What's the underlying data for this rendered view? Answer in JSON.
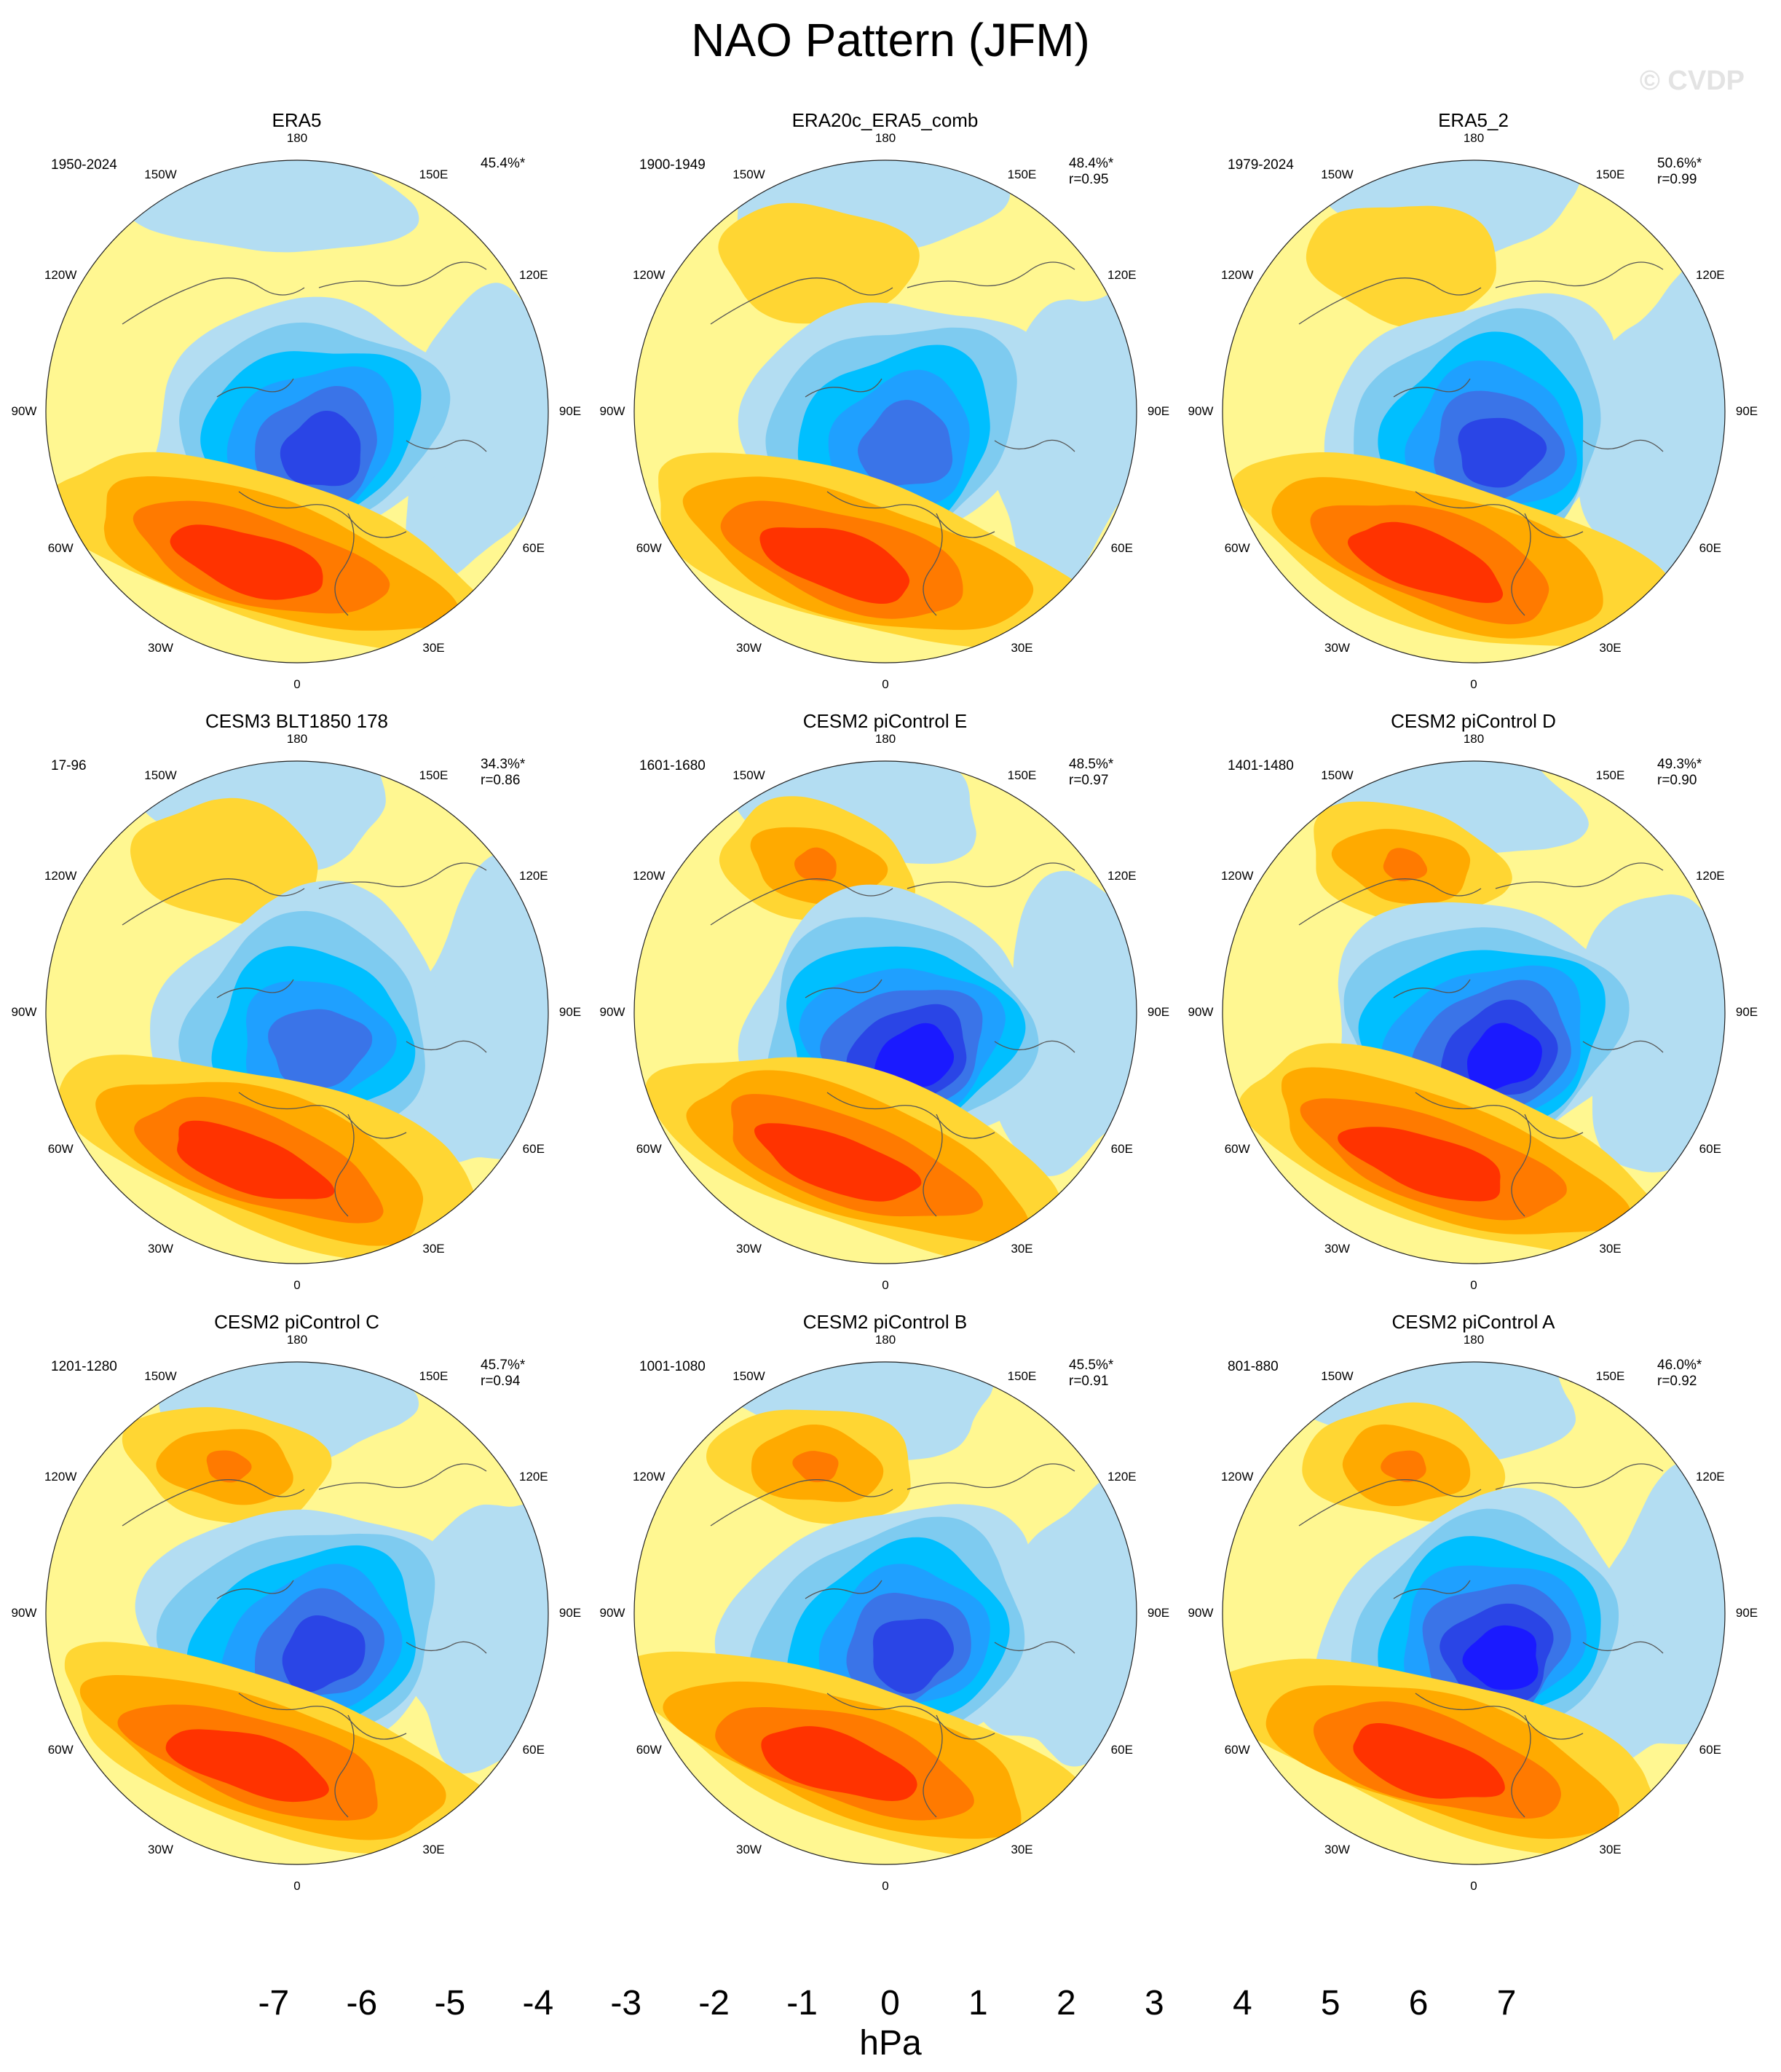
{
  "title": "NAO Pattern (JFM)",
  "watermark": "© CVDP",
  "longitude_labels": [
    "180",
    "150E",
    "120E",
    "90E",
    "60E",
    "30E",
    "0",
    "30W",
    "60W",
    "90W",
    "120W",
    "150W"
  ],
  "colors": {
    "blue_deep": "#1a1aff",
    "blue_mid": "#3a66e6",
    "blue_light": "#1fa0ff",
    "cyan": "#00bfff",
    "sky": "#7ecbf0",
    "pale_blue": "#b3ddf2",
    "pale_yellow": "#fff791",
    "yellow": "#ffd633",
    "orange_light": "#ffaa00",
    "orange": "#ff7a00",
    "red_orange": "#ff3300",
    "coast": "#555555"
  },
  "chart_data": {
    "type": "polar-contour-panels",
    "units": "hPa",
    "colorbar": {
      "label": "hPa",
      "ticks": [
        -7,
        -6,
        -5,
        -4,
        -3,
        -2,
        -1,
        0,
        1,
        2,
        3,
        4,
        5,
        6,
        7
      ],
      "tick_labels": [
        "-7",
        "-6",
        "-5",
        "-4",
        "-3",
        "-2",
        "-1",
        "0",
        "1",
        "2",
        "3",
        "4",
        "5",
        "6",
        "7"
      ],
      "bin_colors": [
        "#8a2be2",
        "#1a00ff",
        "#2a45e6",
        "#3a74e8",
        "#1f96ff",
        "#00bfff",
        "#7ecbf0",
        "#b3ddf2",
        "#fff791",
        "#ffd633",
        "#ffaa00",
        "#ff7a00",
        "#ff3300",
        "#e60000",
        "#cc1f1f",
        "#ffb3b3"
      ]
    },
    "panels": [
      {
        "title": "ERA5",
        "period": "1950-2024",
        "pct": "45.4%*",
        "r": "",
        "low_min": -5.5,
        "high_max": 3.6
      },
      {
        "title": "ERA20c_ERA5_comb",
        "period": "1900-1949",
        "pct": "48.4%*",
        "r": "r=0.95",
        "low_min": -4.6,
        "high_max": 4.2
      },
      {
        "title": "ERA5_2",
        "period": "1979-2024",
        "pct": "50.6%*",
        "r": "r=0.99",
        "low_min": -5.4,
        "high_max": 3.5
      },
      {
        "title": "CESM3 BLT1850 178",
        "period": "17-96",
        "pct": "34.3%*",
        "r": "r=0.86",
        "low_min": -4.5,
        "high_max": 3.4
      },
      {
        "title": "CESM2 piControl E",
        "period": "1601-1680",
        "pct": "48.5%*",
        "r": "r=0.97",
        "low_min": -6.2,
        "high_max": 3.5
      },
      {
        "title": "CESM2 piControl D",
        "period": "1401-1480",
        "pct": "49.3%*",
        "r": "r=0.90",
        "low_min": -6.3,
        "high_max": 3.4
      },
      {
        "title": "CESM2 piControl C",
        "period": "1201-1280",
        "pct": "45.7%*",
        "r": "r=0.94",
        "low_min": -6.0,
        "high_max": 3.6
      },
      {
        "title": "CESM2 piControl B",
        "period": "1001-1080",
        "pct": "45.5%*",
        "r": "r=0.91",
        "low_min": -5.6,
        "high_max": 3.5
      },
      {
        "title": "CESM2 piControl A",
        "period": "801-880",
        "pct": "46.0%*",
        "r": "r=0.92",
        "low_min": -6.4,
        "high_max": 3.4
      }
    ]
  }
}
